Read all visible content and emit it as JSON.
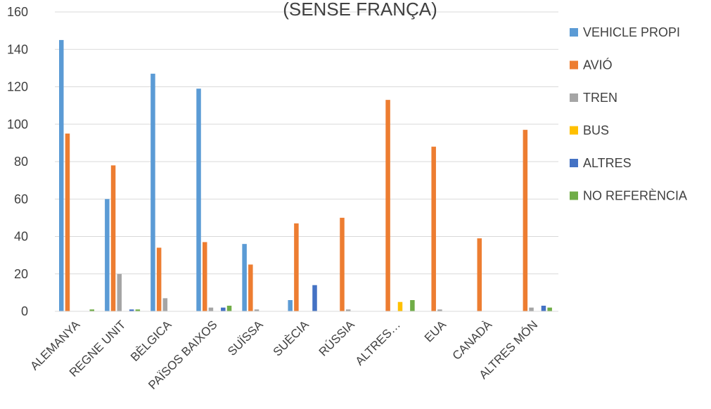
{
  "chart_data": {
    "type": "bar",
    "title": "(SENSE FRANÇA)",
    "xlabel": "",
    "ylabel": "",
    "ylim": [
      0,
      160
    ],
    "yticks": [
      0,
      20,
      40,
      60,
      80,
      100,
      120,
      140,
      160
    ],
    "grid": true,
    "legend_position": "right",
    "categories": [
      "ALEMANYA",
      "REGNE UNIT",
      "BÈLGICA",
      "PAÏSOS BAIXOS",
      "SUÏSSA",
      "SUÈCIA",
      "RÚSSIA",
      "ALTRES…",
      "EUA",
      "CANADÀ",
      "ALTRES MÓN"
    ],
    "series": [
      {
        "name": "VEHICLE PROPI",
        "color": "#5B9BD5",
        "values": [
          145,
          60,
          127,
          119,
          36,
          6,
          0,
          0,
          0,
          0,
          0
        ]
      },
      {
        "name": "AVIÓ",
        "color": "#ED7D31",
        "values": [
          95,
          78,
          34,
          37,
          25,
          47,
          50,
          113,
          88,
          39,
          97
        ]
      },
      {
        "name": "TREN",
        "color": "#A5A5A5",
        "values": [
          0,
          20,
          7,
          2,
          1,
          0,
          1,
          0,
          1,
          0,
          2
        ]
      },
      {
        "name": "BUS",
        "color": "#FFC000",
        "values": [
          0,
          0,
          0,
          0,
          0,
          0,
          0,
          5,
          0,
          0,
          0
        ]
      },
      {
        "name": "ALTRES",
        "color": "#4472C4",
        "values": [
          0,
          1,
          0,
          2,
          0,
          14,
          0,
          0,
          0,
          0,
          3
        ]
      },
      {
        "name": "NO REFERÈNCIA",
        "color": "#70AD47",
        "values": [
          1,
          1,
          0,
          3,
          0,
          0,
          0,
          6,
          0,
          0,
          2
        ]
      }
    ]
  }
}
